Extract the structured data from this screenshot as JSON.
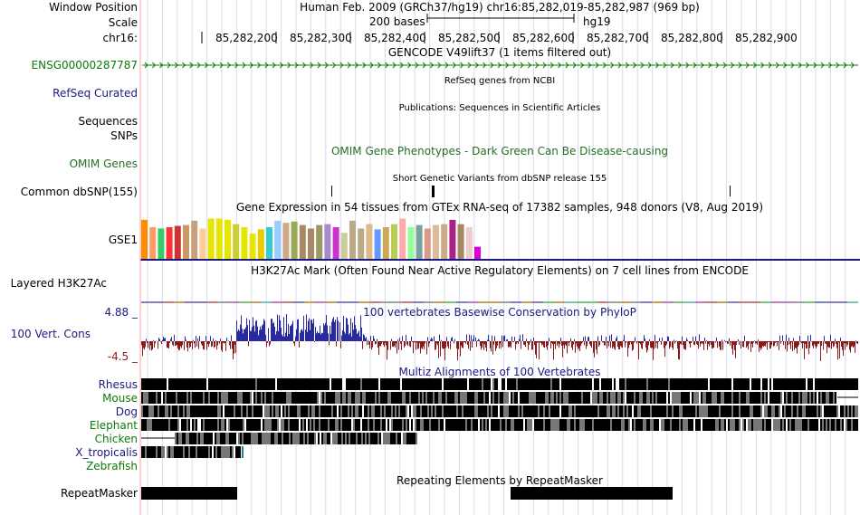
{
  "header": {
    "window_position_label": "Window Position",
    "window_position_value": "Human Feb. 2009 (GRCh37/hg19)   chr16:85,282,019-85,282,987 (969 bp)",
    "scale_label": "Scale",
    "scale_value": "200 bases",
    "scale_assembly": "hg19",
    "chrom_label": "chr16:",
    "ruler_ticks": [
      "85,282,200",
      "85,282,300",
      "85,282,400",
      "85,282,500",
      "85,282,600",
      "85,282,700",
      "85,282,800",
      "85,282,900"
    ]
  },
  "tracks": {
    "gencode_title": "GENCODE V49lift37 (1 items filtered out)",
    "gencode_item": "ENSG00000287787",
    "refseq_label": "RefSeq Curated",
    "refseq_title": "RefSeq genes from NCBI",
    "publications_title": "Publications: Sequences in Scientific Articles",
    "sequences_label": "Sequences",
    "snps_label": "SNPs",
    "omim_label": "OMIM Genes",
    "omim_title": "OMIM Gene Phenotypes - Dark Green Can Be Disease-causing",
    "dbsnp_title": "Short Genetic Variants from dbSNP release 155",
    "dbsnp_label": "Common dbSNP(155)",
    "gtex_title": "Gene Expression in 54 tissues from GTEx RNA-seq of 17382 samples, 948 donors (V8, Aug 2019)",
    "gtex_label": "GSE1",
    "h3k27ac_title": "H3K27Ac Mark (Often Found Near Active Regulatory Elements) on 7 cell lines from ENCODE",
    "h3k27ac_label": "Layered H3K27Ac",
    "phylop_title": "100 vertebrates Basewise Conservation by PhyloP",
    "phylop_label": "100 Vert. Cons",
    "phylop_max": "4.88 _",
    "phylop_min": "-4.5 _",
    "multiz_title": "Multiz Alignments of 100 Vertebrates",
    "species": [
      "Rhesus",
      "Mouse",
      "Dog",
      "Elephant",
      "Chicken",
      "X_tropicalis",
      "Zebrafish"
    ],
    "repeat_title": "Repeating Elements by RepeatMasker",
    "repeat_label": "RepeatMasker"
  },
  "colors": {
    "grid": "#d8d8f0",
    "pink_line": "#f4a0a0",
    "navy": "#1a1a80",
    "gencode_green": "#0a7a0a",
    "phylop_pos": "#2a2aa0",
    "phylop_neg": "#8a1a1a"
  },
  "gtex_colors": [
    "#ff8c00",
    "#ff9966",
    "#33cc66",
    "#ff3333",
    "#cc3333",
    "#cc9966",
    "#c8a080",
    "#ffcc99",
    "#e6e600",
    "#e6e600",
    "#e6e600",
    "#cccc33",
    "#e6e600",
    "#e6e600",
    "#e6cc00",
    "#33cccc",
    "#99ccff",
    "#ccaa88",
    "#99aa55",
    "#aa8866",
    "#aa8866",
    "#999966",
    "#aa88cc",
    "#cc33cc",
    "#cccc99",
    "#bbaa88",
    "#bbaa88",
    "#ddbb88",
    "#6699ff",
    "#ccaa55",
    "#bbcc55",
    "#ffaaaa",
    "#99ff99",
    "#7aa0a0",
    "#dd9988",
    "#ddbb99",
    "#ccaa88",
    "#aa2288",
    "#aa8866",
    "#eecccc",
    "#dd00dd"
  ],
  "gtex_levels": [
    0.92,
    0.75,
    0.72,
    0.75,
    0.78,
    0.8,
    0.9,
    0.72,
    0.95,
    0.95,
    0.92,
    0.82,
    0.75,
    0.6,
    0.7,
    0.75,
    0.9,
    0.85,
    0.88,
    0.8,
    0.72,
    0.8,
    0.82,
    0.75,
    0.62,
    0.9,
    0.72,
    0.82,
    0.7,
    0.75,
    0.82,
    0.95,
    0.75,
    0.8,
    0.72,
    0.8,
    0.82,
    0.92,
    0.82,
    0.75,
    0.3
  ]
}
